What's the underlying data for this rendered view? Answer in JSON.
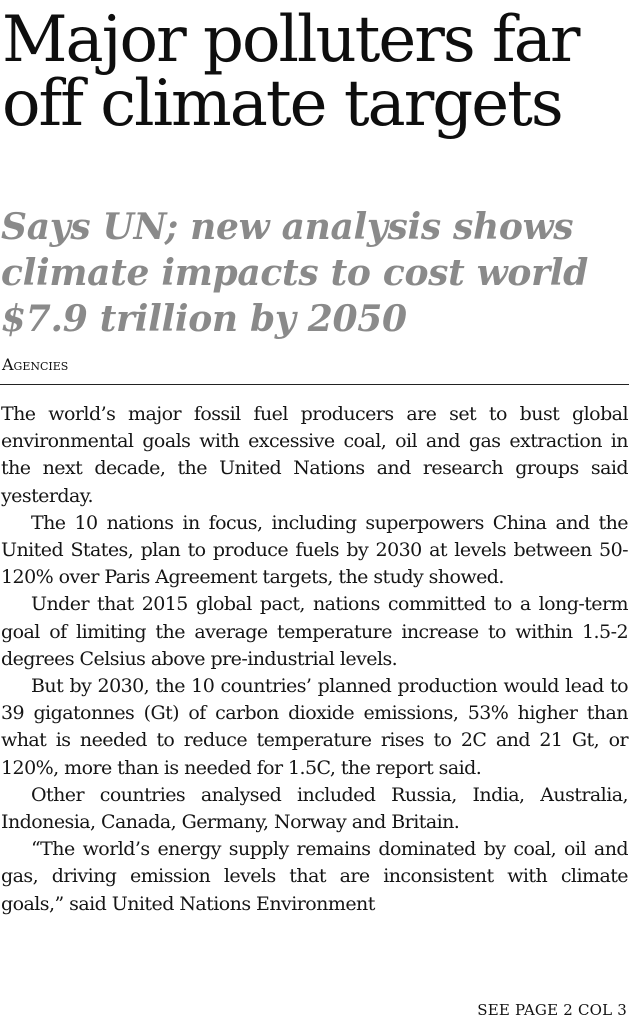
{
  "headline": "Major polluters far off climate targets",
  "subheadline": "Says UN; new analysis shows climate impacts to cost world $7.9 trillion by 2050",
  "byline": "Agencies",
  "paragraphs": [
    "The world’s major fossil fuel producers are set to bust global environmental goals with excessive coal, oil and gas extraction in the next decade, the United Nations and research groups said yesterday.",
    "The 10 nations in focus, including superpowers China and the United States, plan to produce fuels by 2030 at levels between 50-120% over Paris Agreement targets, the study showed.",
    "Under that 2015 global pact, nations committed to a long-term goal of limiting the average temperature increase to within 1.5-2 degrees Celsius above pre-industrial levels.",
    "But by 2030, the 10 countries’ planned production would lead to 39 gigatonnes (Gt) of carbon dioxide emissions, 53% higher than what is needed to reduce temperature rises to 2C and 21 Gt, or 120%, more than is needed for 1.5C, the report said.",
    "Other countries analysed included Russia, India, Australia, Indonesia, Canada, Germany, Norway and Britain.",
    "“The world’s energy supply remains dominated by coal, oil and gas, driving emission levels that are inconsistent with climate goals,” said United Nations Environment"
  ],
  "jump_line": "SEE PAGE 2 COL 3"
}
